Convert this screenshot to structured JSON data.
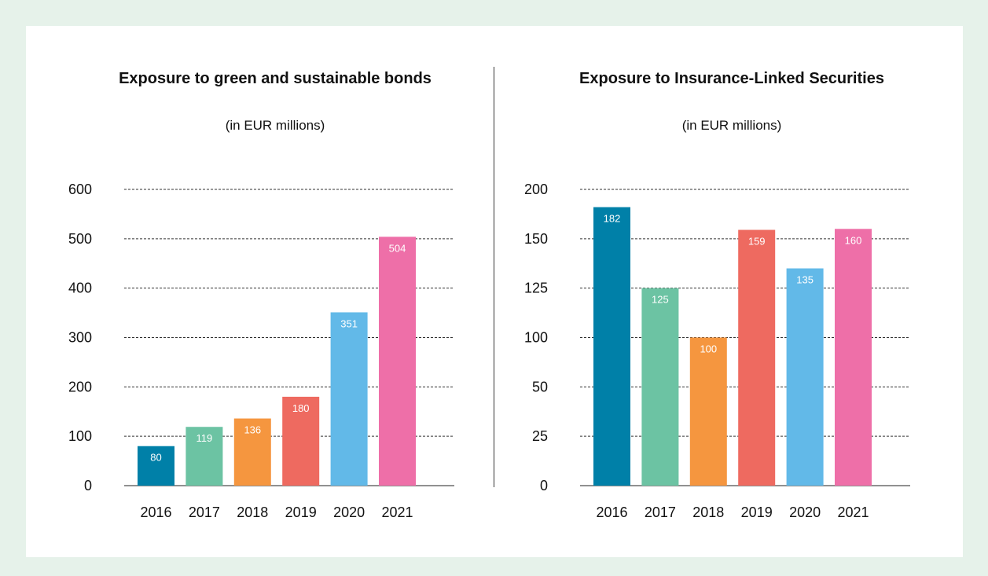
{
  "chart_data": [
    {
      "type": "bar",
      "title": "Exposure to green and sustainable bonds",
      "subtitle": "(in EUR millions)",
      "categories": [
        "2016",
        "2017",
        "2018",
        "2019",
        "2020",
        "2021"
      ],
      "values": [
        80,
        119,
        136,
        180,
        351,
        504
      ],
      "ylim": [
        0,
        600
      ],
      "yticks": [
        "0",
        "100",
        "200",
        "300",
        "400",
        "500",
        "600"
      ],
      "grid": true,
      "colors": [
        "#0080a8",
        "#6cc3a3",
        "#f5963f",
        "#ee6a60",
        "#62b9e8",
        "#ee6fa8"
      ]
    },
    {
      "type": "bar",
      "title": "Exposure to Insurance-Linked Securities",
      "subtitle": "(in EUR millions)",
      "categories": [
        "2016",
        "2017",
        "2018",
        "2019",
        "2020",
        "2021"
      ],
      "values": [
        182,
        125,
        100,
        159,
        135,
        160
      ],
      "yticks": [
        "0",
        "25",
        "50",
        "100",
        "125",
        "150",
        "200"
      ],
      "grid": true,
      "colors": [
        "#0080a8",
        "#6cc3a3",
        "#f5963f",
        "#ee6a60",
        "#62b9e8",
        "#ee6fa8"
      ]
    }
  ]
}
